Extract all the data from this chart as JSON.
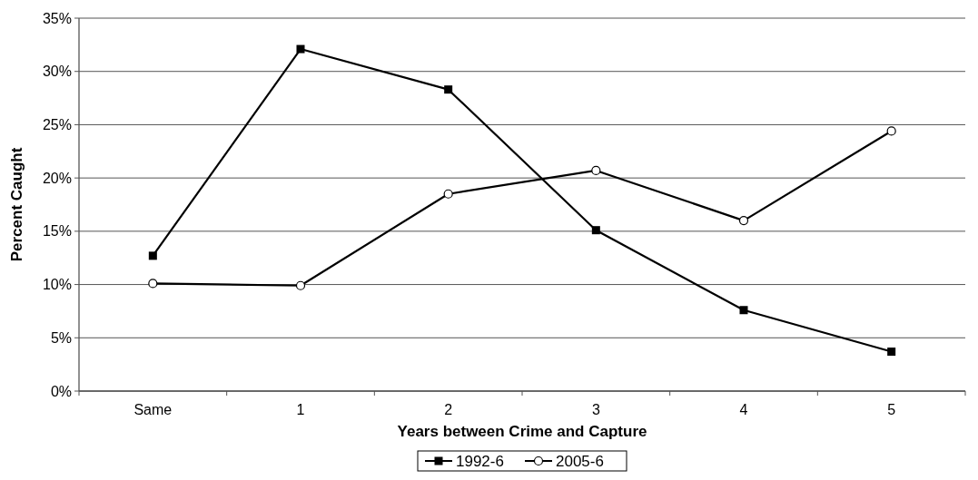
{
  "chart_data": {
    "type": "line",
    "xlabel": "Years between Crime and Capture",
    "ylabel": "Percent Caught",
    "categories": [
      "Same",
      "1",
      "2",
      "3",
      "4",
      "5"
    ],
    "series": [
      {
        "name": "1992-6",
        "color": "#000000",
        "marker": "square",
        "values": [
          12.7,
          32.1,
          28.3,
          15.1,
          7.6,
          3.7
        ]
      },
      {
        "name": "2005-6",
        "color": "#000000",
        "marker": "circle",
        "values": [
          10.1,
          9.9,
          18.5,
          20.7,
          16.0,
          24.4
        ]
      }
    ],
    "ylim": [
      0,
      35
    ],
    "yticks": [
      {
        "value": 0,
        "label": "0%"
      },
      {
        "value": 5,
        "label": "5%"
      },
      {
        "value": 10,
        "label": "10%"
      },
      {
        "value": 15,
        "label": "15%"
      },
      {
        "value": 20,
        "label": "20%"
      },
      {
        "value": 25,
        "label": "25%"
      },
      {
        "value": 30,
        "label": "30%"
      },
      {
        "value": 35,
        "label": "35%"
      }
    ],
    "grid": "y",
    "legend": "bottom",
    "line_style": "solid"
  }
}
